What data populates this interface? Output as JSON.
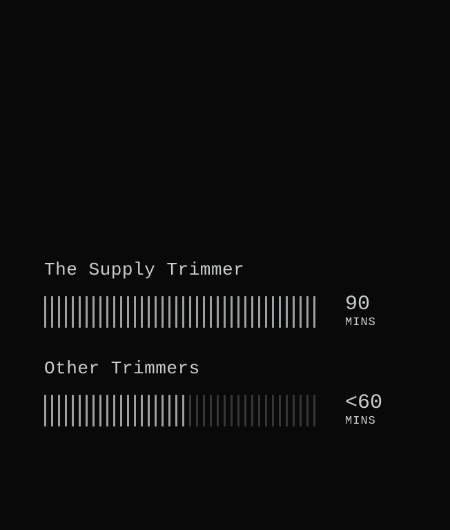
{
  "colors": {
    "background": "#090909",
    "text": "#c9ccce",
    "tick_on": "#9da0a2",
    "tick_dim": "#343637"
  },
  "bars": [
    {
      "label": "The Supply Trimmer",
      "value": "90",
      "unit": "MINS",
      "tick_total": 40,
      "tick_filled": 40
    },
    {
      "label": "Other Trimmers",
      "value": "<60",
      "unit": "MINS",
      "tick_total": 40,
      "tick_filled": 21
    }
  ]
}
